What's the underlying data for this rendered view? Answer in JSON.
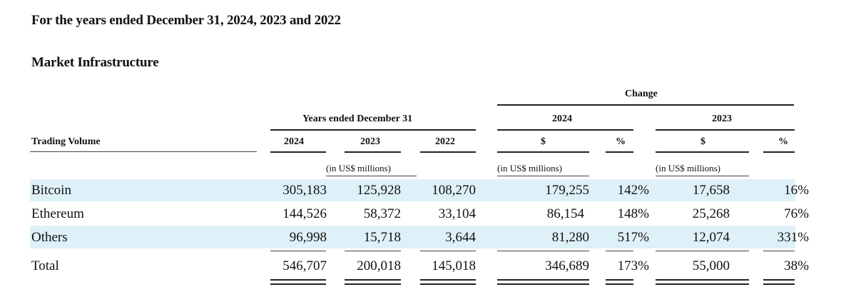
{
  "title": "For the years ended December 31, 2024, 2023 and 2022",
  "section": "Market Infrastructure",
  "table": {
    "change_label": "Change",
    "years_header": "Years ended December 31",
    "change_years": [
      "2024",
      "2023"
    ],
    "row_header": "Trading Volume",
    "col_years": [
      "2024",
      "2023",
      "2022"
    ],
    "dollar_sign": "$",
    "pct_sign": "%",
    "unit_label": "(in US$ millions)",
    "rows": [
      {
        "label": "Bitcoin",
        "v2024": "305,183",
        "v2023": "125,928",
        "v2022": "108,270",
        "c24_usd": "179,255",
        "c24_pct": "142%",
        "c23_usd": "17,658",
        "c23_pct": "16%"
      },
      {
        "label": "Ethereum",
        "v2024": "144,526",
        "v2023": "58,372",
        "v2022": "33,104",
        "c24_usd": "86,154",
        "c24_pct": "148%",
        "c23_usd": "25,268",
        "c23_pct": "76%"
      },
      {
        "label": "Others",
        "v2024": "96,998",
        "v2023": "15,718",
        "v2022": "3,644",
        "c24_usd": "81,280",
        "c24_pct": "517%",
        "c23_usd": "12,074",
        "c23_pct": "331%"
      },
      {
        "label": "Total",
        "v2024": "546,707",
        "v2023": "200,018",
        "v2022": "145,018",
        "c24_usd": "346,689",
        "c24_pct": "173%",
        "c23_usd": "55,000",
        "c23_pct": "38%"
      }
    ]
  }
}
